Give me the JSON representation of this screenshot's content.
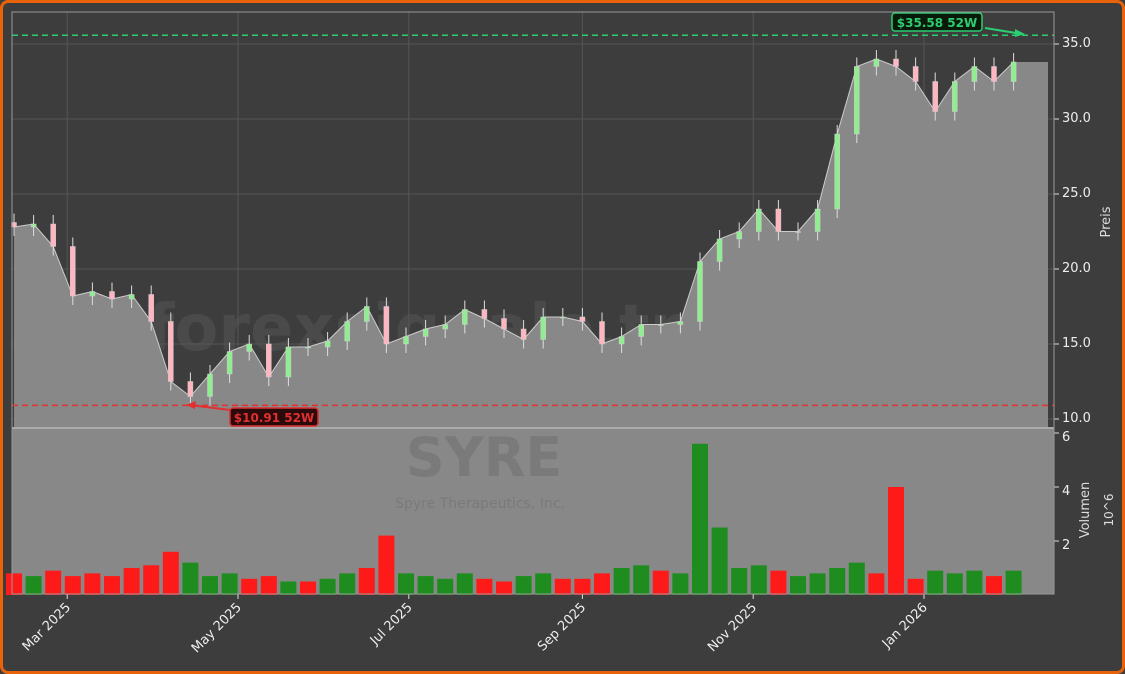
{
  "chart_data": [
    {
      "type": "line",
      "panel": "price",
      "ylabel": "Preis",
      "ylim": [
        9.5,
        37.2
      ],
      "yticks": [
        "10.0",
        "15.0",
        "20.0",
        "25.0",
        "30.0",
        "35.0"
      ],
      "grid": true,
      "watermark": "forexsignale.trade",
      "x": [
        "2025-02-10",
        "2025-02-17",
        "2025-02-24",
        "2025-03-03",
        "2025-03-10",
        "2025-03-17",
        "2025-03-24",
        "2025-03-31",
        "2025-04-07",
        "2025-04-14",
        "2025-04-21",
        "2025-04-28",
        "2025-05-05",
        "2025-05-12",
        "2025-05-19",
        "2025-05-26",
        "2025-06-02",
        "2025-06-09",
        "2025-06-16",
        "2025-06-23",
        "2025-06-30",
        "2025-07-07",
        "2025-07-14",
        "2025-07-21",
        "2025-07-28",
        "2025-08-04",
        "2025-08-11",
        "2025-08-18",
        "2025-08-25",
        "2025-09-01",
        "2025-09-08",
        "2025-09-15",
        "2025-09-22",
        "2025-09-29",
        "2025-10-06",
        "2025-10-13",
        "2025-10-20",
        "2025-10-27",
        "2025-11-03",
        "2025-11-10",
        "2025-11-17",
        "2025-11-24",
        "2025-12-01",
        "2025-12-08",
        "2025-12-15",
        "2025-12-22",
        "2025-12-29",
        "2026-01-05",
        "2026-01-12",
        "2026-01-19",
        "2026-01-26",
        "2026-02-02"
      ],
      "close": [
        22.8,
        23.0,
        21.5,
        18.2,
        18.5,
        18.0,
        18.3,
        16.5,
        12.5,
        11.5,
        13.0,
        14.5,
        15.0,
        12.8,
        14.8,
        14.8,
        15.2,
        16.5,
        17.5,
        15.0,
        15.5,
        16.0,
        16.3,
        17.3,
        16.7,
        16.0,
        15.3,
        16.8,
        16.8,
        16.5,
        15.0,
        15.5,
        16.3,
        16.3,
        16.5,
        20.5,
        22.0,
        22.5,
        24.0,
        22.5,
        22.5,
        24.0,
        29.0,
        33.5,
        34.0,
        33.5,
        32.5,
        30.5,
        32.5,
        33.5,
        32.5,
        33.8
      ],
      "annotations": [
        {
          "label": "$35.58 52W",
          "value": 35.58,
          "kind": "52-week high",
          "color": "#2ecc71"
        },
        {
          "label": "$10.91 52W",
          "value": 10.91,
          "kind": "52-week low",
          "color": "#e03030"
        }
      ]
    },
    {
      "type": "bar",
      "panel": "volume",
      "ylabel": "Volumen",
      "yunit": "10^6",
      "ylim": [
        0,
        6.1
      ],
      "yticks": [
        "2",
        "4",
        "6"
      ],
      "watermark_title": "SYRE",
      "watermark_subtitle": "Spyre Therapeutics, Inc.",
      "values": [
        0.8,
        0.7,
        0.9,
        0.7,
        0.8,
        0.7,
        1.0,
        1.1,
        1.6,
        1.2,
        0.7,
        0.8,
        0.6,
        0.7,
        0.5,
        0.5,
        0.6,
        0.8,
        1.0,
        2.2,
        0.8,
        0.7,
        0.6,
        0.8,
        0.6,
        0.5,
        0.7,
        0.8,
        0.6,
        0.6,
        0.8,
        1.0,
        1.1,
        0.9,
        0.8,
        5.6,
        2.5,
        1.0,
        1.1,
        0.9,
        0.7,
        0.8,
        1.0,
        1.2,
        0.8,
        4.0,
        0.6,
        0.9,
        0.8,
        0.9,
        0.7,
        0.9
      ],
      "up": [
        false,
        true,
        false,
        false,
        false,
        false,
        false,
        false,
        false,
        true,
        true,
        true,
        false,
        false,
        true,
        false,
        true,
        true,
        false,
        false,
        true,
        true,
        true,
        true,
        false,
        false,
        true,
        true,
        false,
        false,
        false,
        true,
        true,
        false,
        true,
        true,
        true,
        true,
        true,
        false,
        true,
        true,
        true,
        true,
        false,
        false,
        false,
        true,
        true,
        true,
        false,
        true
      ],
      "colors": {
        "up": "#1e8c1e",
        "down": "#ff1a1a"
      }
    }
  ],
  "xaxis": {
    "ticks": [
      "Mar 2025",
      "May 2025",
      "Jul 2025",
      "Sep 2025",
      "Nov 2025",
      "Jan 2026"
    ],
    "tick_dates": [
      "2025-03-01",
      "2025-05-01",
      "2025-07-01",
      "2025-09-01",
      "2025-11-01",
      "2026-01-01"
    ]
  },
  "colors": {
    "border": "#e8630a",
    "background": "#3d3d3d",
    "area": "#888888",
    "candle_up": "#90ee90",
    "candle_down": "#ffb6c1"
  }
}
